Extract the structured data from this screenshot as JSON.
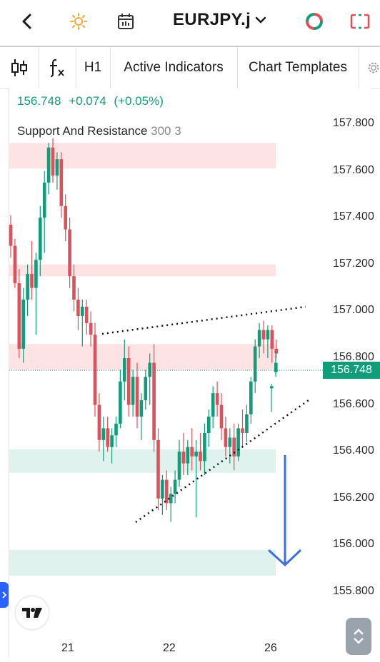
{
  "header": {
    "symbol": "EURJPY.j",
    "icons": [
      "back-icon",
      "theme-sun-icon",
      "calendar-icon",
      "chevron-down-icon",
      "rotate-icon",
      "layout-icon"
    ]
  },
  "toolbar": {
    "indicators_label": "Active Indicators",
    "templates_label": "Chart Templates",
    "timeframe": "H1",
    "icons": [
      "candle-type-icon",
      "fx-icon",
      "settings-icon"
    ]
  },
  "chart": {
    "last_price": "156.748",
    "change": "+0.074",
    "change_pct": "(+0.05%)",
    "indicator_name": "Support And Resistance",
    "indicator_params": "300 3",
    "price_tag": "156.748"
  },
  "chart_data": {
    "type": "candlestick",
    "y_axis_labels": [
      "157.800",
      "157.600",
      "157.400",
      "157.200",
      "157.000",
      "156.800",
      "156.600",
      "156.400",
      "156.200",
      "156.000",
      "155.800"
    ],
    "x_axis_labels": [
      "21",
      "22",
      "26"
    ],
    "ylim": [
      155.75,
      157.85
    ],
    "zones": [
      {
        "type": "resistance",
        "from": 157.61,
        "to": 157.72
      },
      {
        "type": "resistance",
        "from": 157.15,
        "to": 157.2
      },
      {
        "type": "resistance",
        "from": 156.75,
        "to": 156.86
      },
      {
        "type": "support",
        "from": 156.31,
        "to": 156.41
      },
      {
        "type": "support",
        "from": 155.87,
        "to": 155.98
      }
    ],
    "colors": {
      "up": "#119c7a",
      "down": "#e0505a",
      "resistance": "#fde3e3",
      "support": "#dff2ee",
      "arrow": "#3b6fe0"
    }
  }
}
